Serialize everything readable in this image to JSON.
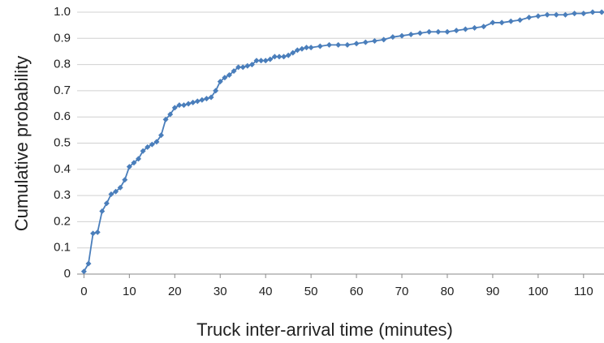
{
  "chart_data": {
    "type": "line",
    "x_label": "Truck inter-arrival time (minutes)",
    "y_label": "Cumulative probability",
    "x": [
      0,
      1,
      2,
      3,
      4,
      5,
      6,
      7,
      8,
      9,
      10,
      11,
      12,
      13,
      14,
      15,
      16,
      17,
      18,
      19,
      20,
      21,
      22,
      23,
      24,
      25,
      26,
      27,
      28,
      29,
      30,
      31,
      32,
      33,
      34,
      35,
      36,
      37,
      38,
      39,
      40,
      41,
      42,
      43,
      44,
      45,
      46,
      47,
      48,
      49,
      50,
      52,
      54,
      56,
      58,
      60,
      62,
      64,
      66,
      68,
      70,
      72,
      74,
      76,
      78,
      80,
      82,
      84,
      86,
      88,
      90,
      92,
      94,
      96,
      98,
      100,
      102,
      104,
      106,
      108,
      110,
      112,
      114
    ],
    "series": [
      {
        "color": "#4a7ebb",
        "values": [
          0.01,
          0.04,
          0.155,
          0.16,
          0.24,
          0.27,
          0.305,
          0.315,
          0.33,
          0.36,
          0.41,
          0.425,
          0.44,
          0.47,
          0.485,
          0.495,
          0.505,
          0.53,
          0.59,
          0.61,
          0.635,
          0.645,
          0.645,
          0.65,
          0.655,
          0.66,
          0.665,
          0.67,
          0.675,
          0.7,
          0.735,
          0.75,
          0.76,
          0.775,
          0.79,
          0.79,
          0.795,
          0.8,
          0.815,
          0.815,
          0.815,
          0.82,
          0.83,
          0.83,
          0.83,
          0.835,
          0.845,
          0.855,
          0.86,
          0.865,
          0.865,
          0.87,
          0.875,
          0.875,
          0.875,
          0.88,
          0.885,
          0.89,
          0.895,
          0.905,
          0.91,
          0.915,
          0.92,
          0.925,
          0.925,
          0.925,
          0.93,
          0.935,
          0.94,
          0.945,
          0.96,
          0.96,
          0.965,
          0.97,
          0.98,
          0.985,
          0.99,
          0.99,
          0.99,
          0.995,
          0.995,
          1.0,
          1.0
        ]
      }
    ],
    "xlim": [
      -1.5,
      114.5
    ],
    "xticks": [
      0,
      10,
      20,
      30,
      40,
      50,
      60,
      70,
      80,
      90,
      100,
      110
    ],
    "ylim": [
      0,
      1
    ],
    "yticks": [
      0,
      0.1,
      0.2,
      0.3,
      0.4,
      0.5,
      0.6,
      0.7,
      0.8,
      0.9,
      {
        "value": 1,
        "label": "1.0"
      }
    ],
    "grid": true
  }
}
